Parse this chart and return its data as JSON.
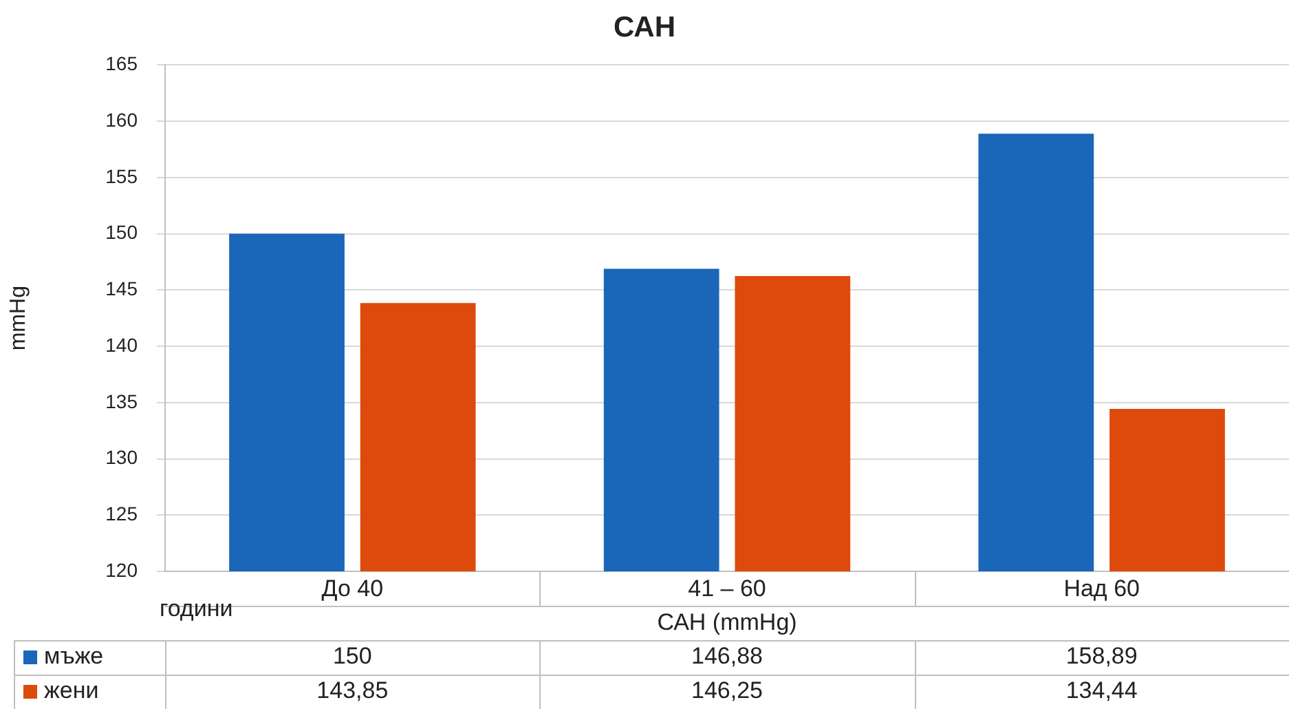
{
  "chart_data": {
    "type": "bar",
    "title": "САН",
    "ylabel": "mmHg",
    "xlabel": "САН (mmHg)",
    "categories": [
      "До 40",
      "41 – 60",
      "Над 60"
    ],
    "series": [
      {
        "name": "мъже",
        "color": "#1a66b8",
        "values": [
          150,
          146.88,
          158.89
        ],
        "value_labels": [
          "150",
          "146,88",
          "158,89"
        ]
      },
      {
        "name": "жени",
        "color": "#dd4a0c",
        "values": [
          143.85,
          146.25,
          134.44
        ],
        "value_labels": [
          "143,85",
          "146,25",
          "134,44"
        ]
      }
    ],
    "ylim": [
      120,
      165
    ],
    "yticks": [
      120,
      125,
      130,
      135,
      140,
      145,
      150,
      155,
      160,
      165
    ],
    "grid": "y",
    "legend": "bottom",
    "annotations": [
      "години"
    ]
  }
}
